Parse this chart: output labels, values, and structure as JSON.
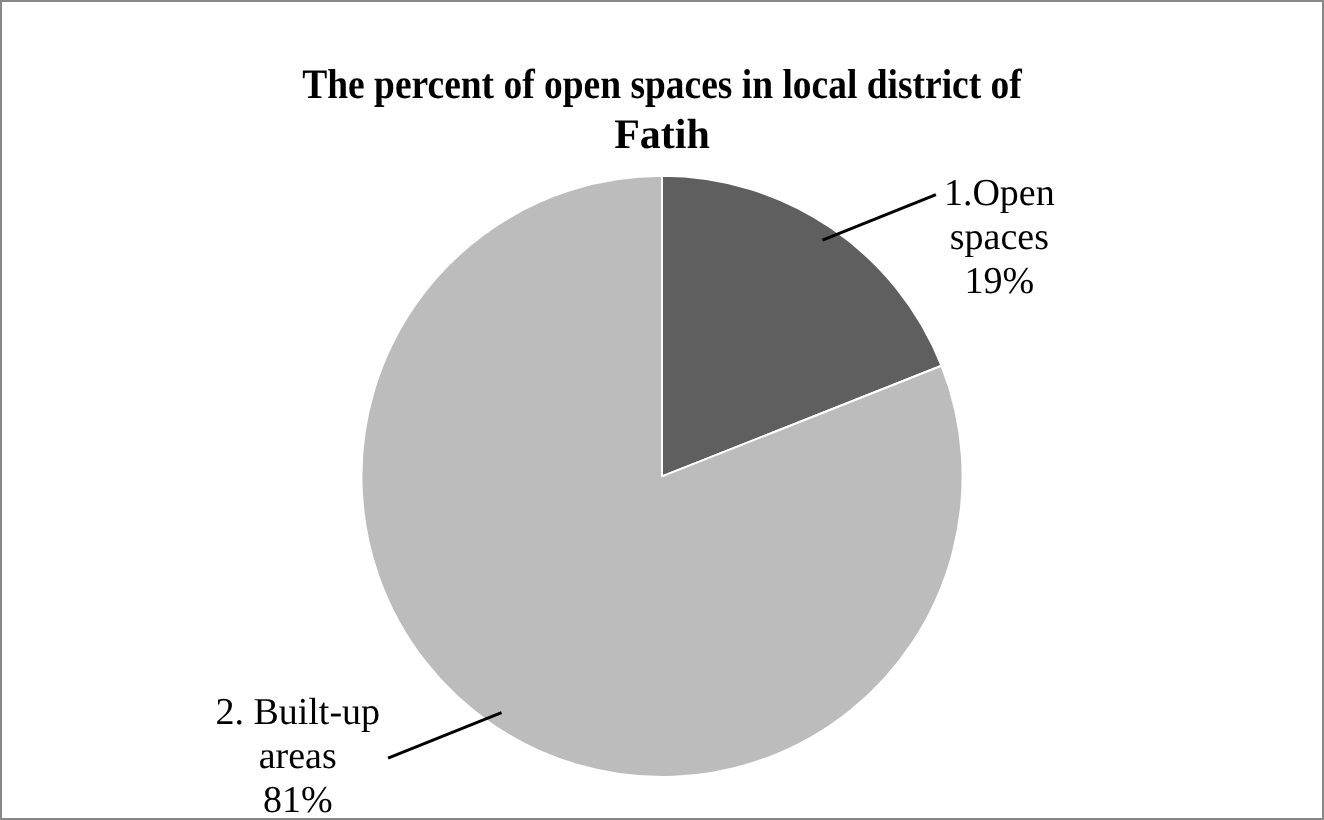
{
  "chart_data": {
    "type": "pie",
    "title": "The percent of open spaces in local district of Fatih",
    "categories": [
      "1.Open spaces",
      "2. Built-up areas"
    ],
    "values": [
      19,
      81
    ],
    "colors": [
      "#5f5f5f",
      "#bcbcbc"
    ],
    "value_labels": [
      "19%",
      "81%"
    ],
    "legend": false
  }
}
